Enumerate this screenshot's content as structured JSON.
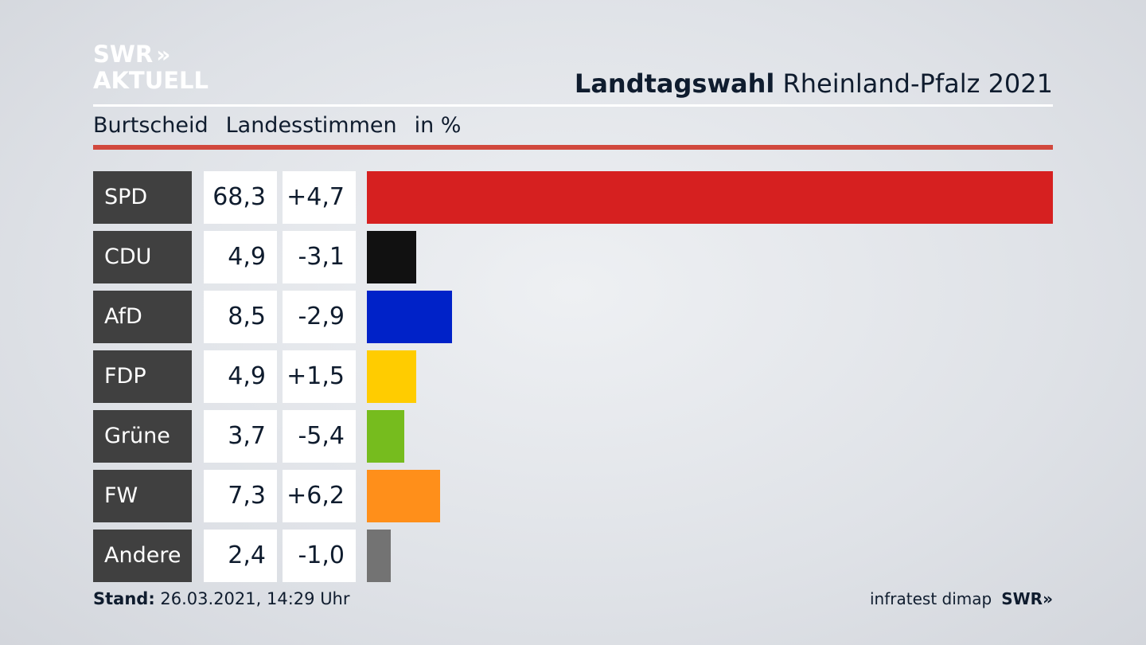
{
  "logo": {
    "line1": "SWR",
    "chevrons": "»",
    "line2": "AKTUELL"
  },
  "header": {
    "title_strong": "Landtagswahl",
    "title_rest": "Rheinland-Pfalz 2021"
  },
  "subheader": {
    "location": "Burtscheid",
    "vote_type": "Landesstimmen",
    "unit": "in %"
  },
  "footer": {
    "stand_label": "Stand:",
    "stand_value": "26.03.2021, 14:29 Uhr",
    "source": "infratest dimap",
    "brand": "SWR»"
  },
  "chart_data": {
    "type": "bar",
    "categories": [
      "SPD",
      "CDU",
      "AfD",
      "FDP",
      "Grüne",
      "FW",
      "Andere"
    ],
    "values": [
      68.3,
      4.9,
      8.5,
      4.9,
      3.7,
      7.3,
      2.4
    ],
    "value_labels": [
      "68,3",
      "4,9",
      "8,5",
      "4,9",
      "3,7",
      "7,3",
      "2,4"
    ],
    "diff_labels": [
      "+4,7",
      "-3,1",
      "-2,9",
      "+1,5",
      "-5,4",
      "+6,2",
      "-1,0"
    ],
    "colors": [
      "#d62020",
      "#111111",
      "#0022c8",
      "#ffcc00",
      "#76bc1e",
      "#ff8f1a",
      "#737373"
    ],
    "title": "Landtagswahl Rheinland-Pfalz 2021",
    "xlim": [
      0,
      68.3
    ]
  }
}
